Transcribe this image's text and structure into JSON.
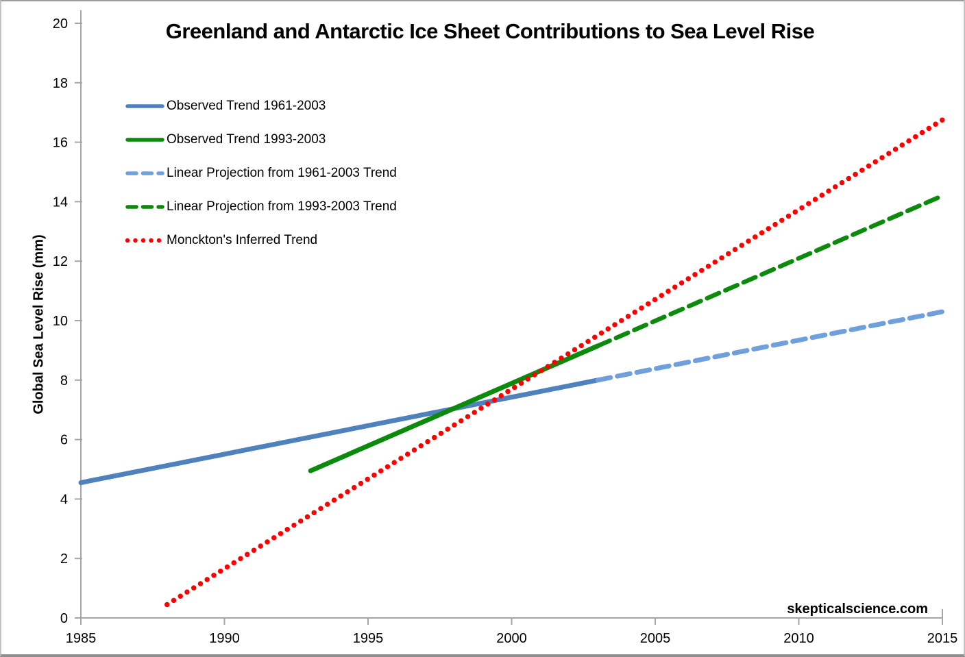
{
  "page": {
    "watermark": "skepticalscience.com"
  },
  "chart_data": {
    "type": "line",
    "title": "Greenland and Antarctic Ice Sheet Contributions to Sea Level Rise",
    "xlabel": "",
    "ylabel": "Global Sea Level Rise (mm)",
    "xlim": [
      1985,
      2015
    ],
    "ylim": [
      0,
      20
    ],
    "x_ticks": [
      "1985",
      "1990",
      "1995",
      "2000",
      "2005",
      "2010",
      "2015"
    ],
    "y_ticks": [
      "0",
      "2",
      "4",
      "6",
      "8",
      "10",
      "12",
      "14",
      "16",
      "18",
      "20"
    ],
    "grid": false,
    "legend_position": "upper-left",
    "axis_color": "#a6a6a6",
    "background_color": "#ffffff",
    "series": [
      {
        "name": "Observed Trend 1961-2003",
        "style": "solid",
        "color": "#4f81bd",
        "width": 7,
        "x": [
          1985,
          2003
        ],
        "y": [
          4.55,
          8.0
        ]
      },
      {
        "name": "Observed Trend 1993-2003",
        "style": "solid",
        "color": "#0c8a0c",
        "width": 7,
        "x": [
          1993,
          2003
        ],
        "y": [
          4.95,
          9.15
        ]
      },
      {
        "name": "Linear Projection from 1961-2003 Trend",
        "style": "dashed",
        "color": "#6fa0dc",
        "width": 7,
        "x": [
          2003,
          2015
        ],
        "y": [
          8.0,
          10.3
        ]
      },
      {
        "name": "Linear Projection from 1993-2003 Trend",
        "style": "dashed",
        "color": "#0c8a0c",
        "width": 6.5,
        "x": [
          2003,
          2015
        ],
        "y": [
          9.15,
          14.2
        ]
      },
      {
        "name": "Monckton's Inferred Trend",
        "style": "dotted",
        "color": "#ff0000",
        "width": 7.5,
        "x": [
          1988,
          2015
        ],
        "y": [
          0.45,
          16.75
        ]
      }
    ]
  }
}
